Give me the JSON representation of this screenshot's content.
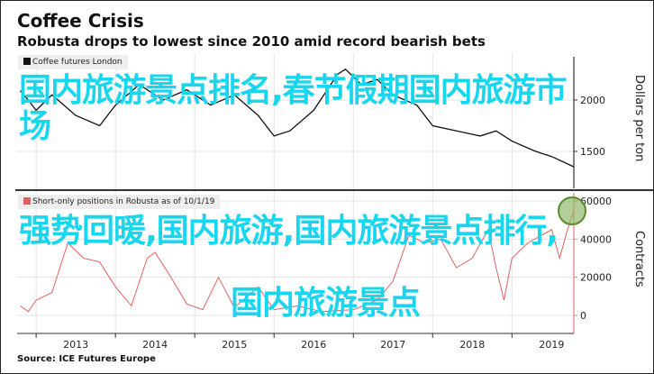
{
  "chart_data": [
    {
      "type": "line",
      "title": "Coffee Crisis",
      "subtitle": "Robusta drops to lowest since 2010 amid record bearish bets",
      "legend": "Coffee futures London",
      "ylabel": "Dollars per ton",
      "ylim": [
        1150,
        2420
      ],
      "yticks": [
        2000,
        1500
      ],
      "color": "#111111",
      "x": [
        2012.8,
        2012.9,
        2013.0,
        2013.2,
        2013.5,
        2013.8,
        2014.0,
        2014.3,
        2014.6,
        2014.9,
        2015.2,
        2015.5,
        2015.8,
        2016.0,
        2016.2,
        2016.5,
        2016.8,
        2016.9,
        2017.1,
        2017.3,
        2017.5,
        2017.8,
        2018.0,
        2018.3,
        2018.6,
        2018.8,
        2019.0,
        2019.3,
        2019.5,
        2019.78
      ],
      "y": [
        2090,
        2000,
        1900,
        2050,
        1850,
        1750,
        1950,
        2150,
        2000,
        2100,
        1950,
        2050,
        1850,
        1650,
        1700,
        1900,
        2250,
        2300,
        2150,
        2200,
        2050,
        1950,
        1750,
        1700,
        1650,
        1700,
        1600,
        1500,
        1450,
        1350
      ]
    },
    {
      "type": "line",
      "legend": "Short-only positions in Robusta as of 10/1/19",
      "ylabel": "Contracts",
      "ylim": [
        0,
        60000
      ],
      "yticks": [
        60000,
        40000,
        20000,
        0
      ],
      "color": "#e06060",
      "x": [
        2012.8,
        2012.9,
        2013.0,
        2013.2,
        2013.4,
        2013.6,
        2013.8,
        2014.0,
        2014.2,
        2014.4,
        2014.5,
        2014.7,
        2014.9,
        2015.1,
        2015.3,
        2015.5,
        2015.8,
        2016.0,
        2016.3,
        2016.6,
        2017.0,
        2017.3,
        2017.5,
        2017.7,
        2017.9,
        2018.1,
        2018.3,
        2018.5,
        2018.7,
        2018.8,
        2018.9,
        2019.0,
        2019.2,
        2019.5,
        2019.6,
        2019.7,
        2019.78
      ],
      "y": [
        5000,
        2000,
        8000,
        12000,
        38000,
        30000,
        28000,
        15000,
        5000,
        30000,
        33000,
        20000,
        6000,
        3000,
        20000,
        4000,
        15000,
        3000,
        5000,
        2000,
        3000,
        8000,
        18000,
        42000,
        38000,
        40000,
        25000,
        30000,
        45000,
        25000,
        8000,
        30000,
        38000,
        45000,
        30000,
        45000,
        55000
      ]
    }
  ],
  "xaxis": {
    "ticks": [
      "2013",
      "2014",
      "2015",
      "2016",
      "2017",
      "2018",
      "2019"
    ]
  },
  "source": "Source: ICE Futures Europe",
  "overlay": {
    "line1": "国内旅游景点排名,春节假期国内旅游市场",
    "line2": "强势回暖,国内旅游,国内旅游景点排行,",
    "line3": "国内旅游景点"
  }
}
